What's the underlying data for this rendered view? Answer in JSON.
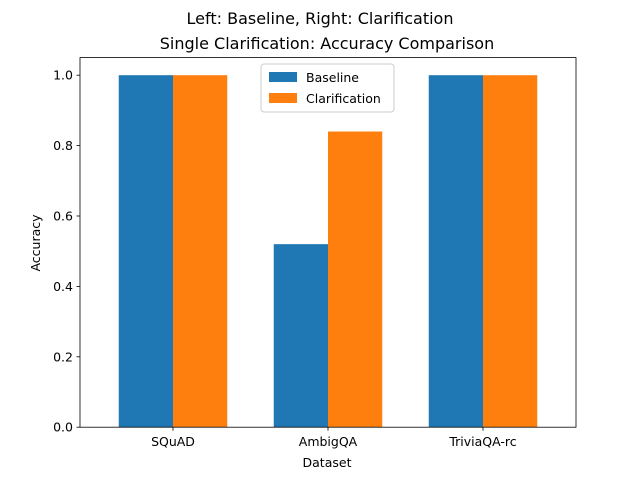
{
  "suptitle": "Left: Baseline, Right: Clarification",
  "chart_data": {
    "type": "bar",
    "title": "Single Clarification: Accuracy Comparison",
    "xlabel": "Dataset",
    "ylabel": "Accuracy",
    "categories": [
      "SQuAD",
      "AmbigQA",
      "TriviaQA-rc"
    ],
    "series": [
      {
        "name": "Baseline",
        "values": [
          1.0,
          0.52,
          1.0
        ],
        "color": "#1f77b4"
      },
      {
        "name": "Clarification",
        "values": [
          1.0,
          0.84,
          1.0
        ],
        "color": "#ff7f0e"
      }
    ],
    "ylim": [
      0,
      1.05
    ],
    "yticks": [
      "0.0",
      "0.2",
      "0.4",
      "0.6",
      "0.8",
      "1.0"
    ],
    "legend_position": "upper-center",
    "grid": false
  }
}
